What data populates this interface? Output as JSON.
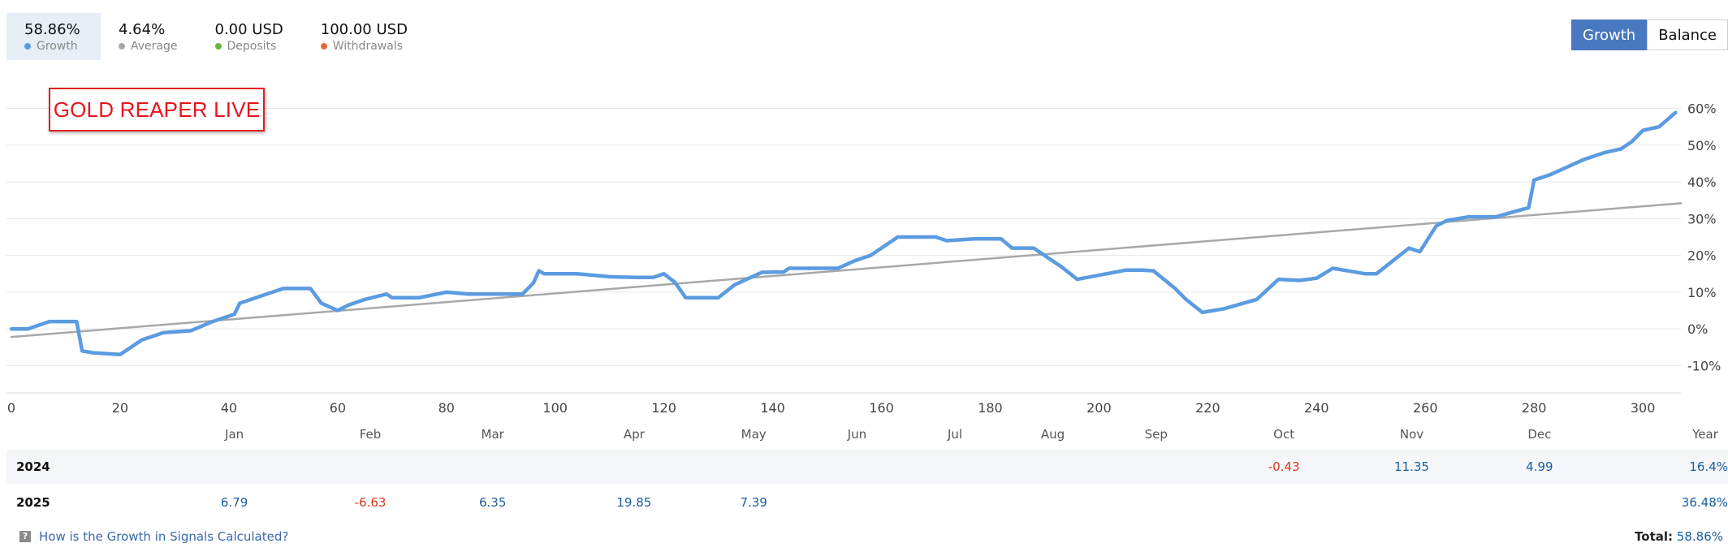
{
  "stats": [
    {
      "value": "58.86%",
      "label": "Growth",
      "color": "#5b9be0",
      "active": true
    },
    {
      "value": "4.64%",
      "label": "Average",
      "color": "#a8a8a8",
      "active": false
    },
    {
      "value": "0.00 USD",
      "label": "Deposits",
      "color": "#6cb33e",
      "active": false
    },
    {
      "value": "100.00 USD",
      "label": "Withdrawals",
      "color": "#e8663d",
      "active": false
    }
  ],
  "toggle": {
    "growth_label": "Growth",
    "balance_label": "Balance",
    "active": "Growth"
  },
  "title_box": "GOLD REAPER LIVE",
  "chart_data": {
    "type": "line",
    "xlim": [
      0,
      307
    ],
    "ylim": [
      -13,
      63
    ],
    "x_ticks": [
      0,
      20,
      40,
      60,
      80,
      100,
      120,
      140,
      160,
      180,
      200,
      220,
      240,
      260,
      280,
      300
    ],
    "y_ticks": [
      {
        "value": 60,
        "label": "60%"
      },
      {
        "value": 50,
        "label": "50%"
      },
      {
        "value": 40,
        "label": "40%"
      },
      {
        "value": 30,
        "label": "30%"
      },
      {
        "value": 20,
        "label": "20%"
      },
      {
        "value": 10,
        "label": "10%"
      },
      {
        "value": 0,
        "label": "0%"
      },
      {
        "value": -10,
        "label": "-10%"
      }
    ],
    "grid": true,
    "series": [
      {
        "name": "Growth",
        "color": "#5b9be0",
        "x": [
          0,
          3,
          7,
          9,
          12,
          13,
          15,
          20,
          24,
          28,
          33,
          37,
          41,
          42,
          46,
          50,
          55,
          57,
          60,
          62,
          65,
          69,
          70,
          73,
          75,
          80,
          84,
          88,
          91,
          94,
          96,
          97,
          98,
          100,
          104,
          110,
          115,
          118,
          120,
          122,
          124,
          127,
          130,
          133,
          138,
          142,
          143,
          146,
          152,
          155,
          158,
          163,
          170,
          172,
          177,
          182,
          184,
          188,
          191,
          193,
          196,
          205,
          206,
          208,
          210,
          214,
          216,
          219,
          223,
          229,
          233,
          237,
          240,
          243,
          249,
          251,
          257,
          259,
          262,
          264,
          268,
          273,
          279,
          280,
          283,
          286,
          289,
          293,
          296,
          298,
          300,
          303,
          306
        ],
        "y": [
          0,
          0,
          2,
          2,
          2,
          -6,
          -6.5,
          -7,
          -3,
          -1,
          -0.5,
          2,
          4,
          7,
          9,
          11,
          11,
          7,
          5,
          6.5,
          8,
          9.5,
          8.5,
          8.5,
          8.5,
          10,
          9.5,
          9.5,
          9.5,
          9.5,
          12.5,
          15.8,
          15,
          15,
          15,
          14.2,
          14,
          14,
          15,
          12.7,
          8.5,
          8.5,
          8.5,
          12,
          15.4,
          15.5,
          16.5,
          16.5,
          16.5,
          18.5,
          20,
          25,
          25,
          24,
          24.5,
          24.5,
          22,
          22,
          19,
          17,
          13.5,
          16,
          16,
          16,
          15.8,
          11,
          8,
          4.5,
          5.5,
          8,
          13.5,
          13.2,
          13.8,
          16.5,
          15,
          15,
          22,
          21,
          28,
          29.5,
          30.5,
          30.5,
          33,
          40.5,
          42,
          44,
          46,
          48,
          49,
          51,
          54,
          55,
          58.86
        ]
      },
      {
        "name": "Average",
        "color": "#a8a8a8",
        "x": [
          0,
          307
        ],
        "y": [
          -2.2,
          34.2
        ]
      }
    ]
  },
  "months": [
    {
      "label": "Jan",
      "x": 41
    },
    {
      "label": "Feb",
      "x": 66
    },
    {
      "label": "Mar",
      "x": 88.5
    },
    {
      "label": "Apr",
      "x": 114.5
    },
    {
      "label": "May",
      "x": 136.5
    },
    {
      "label": "Jun",
      "x": 155.5
    },
    {
      "label": "Jul",
      "x": 173.5
    },
    {
      "label": "Aug",
      "x": 191.5
    },
    {
      "label": "Sep",
      "x": 210.5
    },
    {
      "label": "Oct",
      "x": 234
    },
    {
      "label": "Nov",
      "x": 257.5
    },
    {
      "label": "Dec",
      "x": 281
    }
  ],
  "year_header": "Year",
  "years": [
    {
      "year": "2024",
      "total": "16.4%",
      "values": [
        {
          "month": 9,
          "value": "-0.43",
          "sign": "neg"
        },
        {
          "month": 10,
          "value": "11.35",
          "sign": "pos"
        },
        {
          "month": 11,
          "value": "4.99",
          "sign": "pos"
        }
      ]
    },
    {
      "year": "2025",
      "total": "36.48%",
      "values": [
        {
          "month": 0,
          "value": "6.79",
          "sign": "pos"
        },
        {
          "month": 1,
          "value": "-6.63",
          "sign": "neg"
        },
        {
          "month": 2,
          "value": "6.35",
          "sign": "pos"
        },
        {
          "month": 3,
          "value": "19.85",
          "sign": "pos"
        },
        {
          "month": 4,
          "value": "7.39",
          "sign": "pos"
        }
      ]
    }
  ],
  "footer": {
    "help_link": "How is the Growth in Signals Calculated?",
    "total_label": "Total:",
    "total_value": "58.86%"
  }
}
